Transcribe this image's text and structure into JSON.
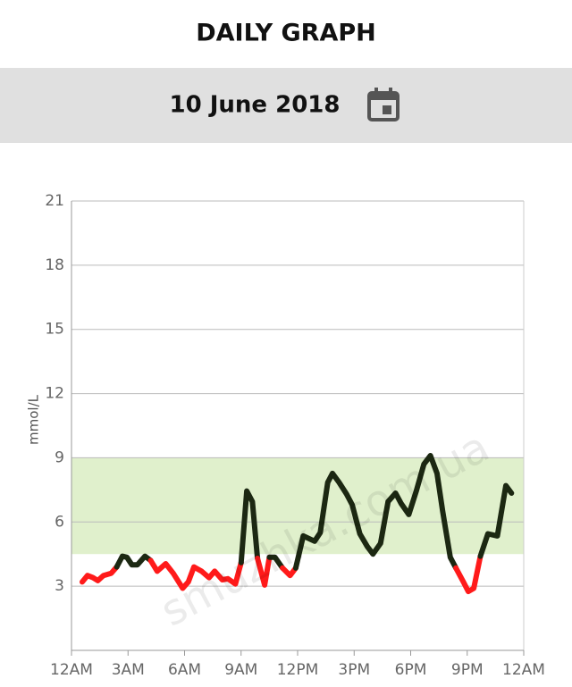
{
  "header": {
    "title": "DAILY GRAPH",
    "date": "10 June 2018"
  },
  "watermark": "smuzhka.com.ua",
  "chart_data": {
    "type": "line",
    "y_label": "mmol/L",
    "x": [
      0.57,
      0.85,
      1.14,
      1.4,
      1.7,
      2.1,
      2.4,
      2.7,
      2.94,
      3.2,
      3.5,
      3.9,
      4.2,
      4.55,
      5.0,
      5.4,
      5.9,
      6.2,
      6.5,
      6.9,
      7.3,
      7.6,
      8.0,
      8.3,
      8.7,
      9.0,
      9.3,
      9.6,
      9.87,
      10.25,
      10.5,
      10.8,
      11.2,
      11.6,
      11.9,
      12.3,
      12.9,
      13.2,
      13.6,
      13.85,
      14.2,
      14.6,
      14.9,
      15.3,
      15.7,
      16.0,
      16.4,
      16.8,
      17.2,
      17.5,
      17.9,
      18.3,
      18.7,
      19.05,
      19.4,
      19.7,
      20.1,
      20.4,
      20.8,
      21.06,
      21.35,
      21.7,
      22.1,
      22.6,
      23.05,
      23.35
    ],
    "series": [
      {
        "name": "glucose",
        "color": "#1c2812",
        "low_color": "#ff1a1a",
        "low_threshold": 4,
        "values": [
          3.2,
          3.5,
          3.4,
          3.26,
          3.5,
          3.6,
          3.9,
          4.4,
          4.35,
          4.0,
          4.0,
          4.4,
          4.2,
          3.7,
          4.05,
          3.6,
          2.9,
          3.2,
          3.9,
          3.7,
          3.4,
          3.7,
          3.3,
          3.35,
          3.1,
          4.1,
          7.45,
          6.95,
          4.3,
          3.05,
          4.35,
          4.35,
          3.85,
          3.5,
          3.85,
          5.35,
          5.1,
          5.5,
          7.85,
          8.27,
          7.85,
          7.3,
          6.8,
          5.45,
          4.85,
          4.5,
          5.0,
          6.95,
          7.35,
          6.85,
          6.35,
          7.45,
          8.7,
          9.1,
          8.27,
          6.5,
          4.35,
          3.85,
          3.2,
          2.75,
          2.9,
          4.4,
          5.45,
          5.35,
          7.7,
          7.35
        ]
      }
    ],
    "target_range": [
      4.5,
      9
    ],
    "target_color": "#e0f0cc",
    "xlim": [
      0,
      24
    ],
    "xticks": [
      {
        "value": 0,
        "label": "12AM"
      },
      {
        "value": 3,
        "label": "3AM"
      },
      {
        "value": 6,
        "label": "6AM"
      },
      {
        "value": 9,
        "label": "9AM"
      },
      {
        "value": 12,
        "label": "12PM"
      },
      {
        "value": 15,
        "label": "3PM"
      },
      {
        "value": 18,
        "label": "6PM"
      },
      {
        "value": 21,
        "label": "9PM"
      },
      {
        "value": 24,
        "label": "12AM"
      }
    ],
    "ylim": [
      0,
      21
    ],
    "yticks": [
      3,
      6,
      9,
      12,
      15,
      18,
      21
    ],
    "grid": true
  }
}
